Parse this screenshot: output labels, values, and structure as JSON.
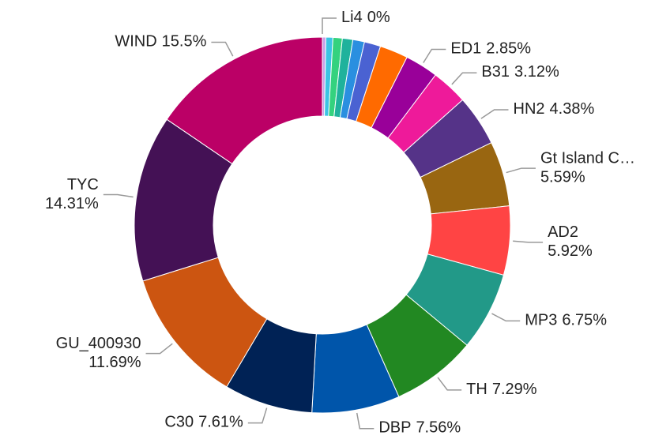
{
  "chart_data": {
    "type": "donut",
    "categories": [
      "Li4",
      null,
      null,
      null,
      null,
      null,
      null,
      null,
      "ED1",
      "B31",
      "HN2",
      "Gt Island C…",
      "AD2",
      "MP3",
      "TH",
      "DBP",
      "C30",
      "GU_400930",
      "TYC",
      "WIND"
    ],
    "values": [
      0,
      0.3,
      0.6,
      0.8,
      0.9,
      1.0,
      1.4,
      2.43,
      2.85,
      3.12,
      4.38,
      5.59,
      5.92,
      6.75,
      7.29,
      7.56,
      7.61,
      11.69,
      14.31,
      15.5
    ],
    "value_labels": [
      "0%",
      null,
      null,
      null,
      null,
      null,
      null,
      null,
      "2.85%",
      "3.12%",
      "4.38%",
      "5.59%",
      "5.92%",
      "6.75%",
      "7.29%",
      "7.56%",
      "7.61%",
      "11.69%",
      "14.31%",
      "15.5%"
    ],
    "colors": [
      "#f2a6c8",
      "#c9a0e8",
      "#3cc4e4",
      "#34d27e",
      "#1fb29c",
      "#2a8fe0",
      "#4a62d2",
      "#ff6a00",
      "#990099",
      "#ee1a9a",
      "#553388",
      "#996611",
      "#ff4444",
      "#229988",
      "#228822",
      "#0055aa",
      "#002255",
      "#cc5511",
      "#441155",
      "#bb0066"
    ]
  }
}
